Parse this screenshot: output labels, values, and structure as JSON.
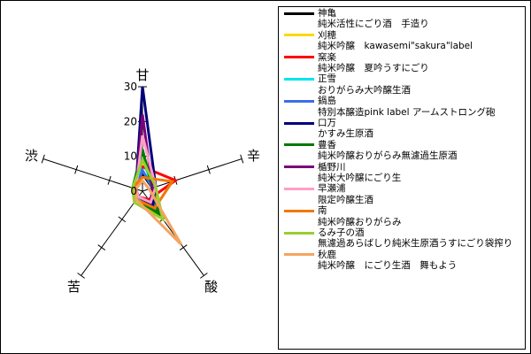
{
  "chart_data": {
    "type": "radar",
    "title": "",
    "axes": [
      "甘",
      "辛",
      "酸",
      "苦",
      "渋"
    ],
    "rlim": [
      0,
      30
    ],
    "ticks": [
      "0",
      "10",
      "20",
      "30"
    ],
    "legend_position": "right",
    "series": [
      {
        "name": "神亀",
        "label": "純米活性にごり酒　手造り",
        "color": "#000000",
        "values": [
          5,
          3,
          4,
          2,
          2
        ]
      },
      {
        "name": "刈穂",
        "label": "純米吟醸　kawasemi\"sakura\"label",
        "color": "#ffd700",
        "values": [
          8,
          4,
          9,
          4,
          3
        ]
      },
      {
        "name": "窯楽",
        "label": "純米吟醸　夏吟うすにごり",
        "color": "#ff0000",
        "values": [
          7,
          10,
          3,
          2,
          2
        ]
      },
      {
        "name": "正雪",
        "label": "おりがらみ大吟醸生酒",
        "color": "#00e5ee",
        "values": [
          10,
          3,
          4,
          3,
          2
        ]
      },
      {
        "name": "鍋島",
        "label": "特別本醸造pink label アームストロング砲",
        "color": "#3a6ee8",
        "values": [
          6,
          3,
          6,
          3,
          2
        ]
      },
      {
        "name": "口万",
        "label": "かすみ生原酒",
        "color": "#00007a",
        "values": [
          30,
          4,
          5,
          2,
          2
        ]
      },
      {
        "name": "豊香",
        "label": "純米吟醸おりがらみ無濾過生原酒",
        "color": "#007a00",
        "values": [
          12,
          3,
          8,
          3,
          3
        ]
      },
      {
        "name": "楯野川",
        "label": "純米大吟醸にごり生",
        "color": "#7a007a",
        "values": [
          22,
          3,
          4,
          2,
          2
        ]
      },
      {
        "name": "早瀬浦",
        "label": "限定吟醸生酒",
        "color": "#ff9ec8",
        "values": [
          16,
          4,
          4,
          2,
          2
        ]
      },
      {
        "name": "南",
        "label": "純米吟醸おりがらみ",
        "color": "#f07800",
        "values": [
          4,
          9,
          6,
          3,
          3
        ]
      },
      {
        "name": "るみ子の酒",
        "label": "無濾過あらばしり純米生原酒うすにごり袋搾り",
        "color": "#9acd32",
        "values": [
          9,
          4,
          10,
          4,
          3
        ]
      },
      {
        "name": "秋鹿",
        "label": "純米吟醸　にごり生酒　舞もよう",
        "color": "#f4a460",
        "values": [
          3,
          2,
          19,
          3,
          2
        ]
      }
    ]
  }
}
